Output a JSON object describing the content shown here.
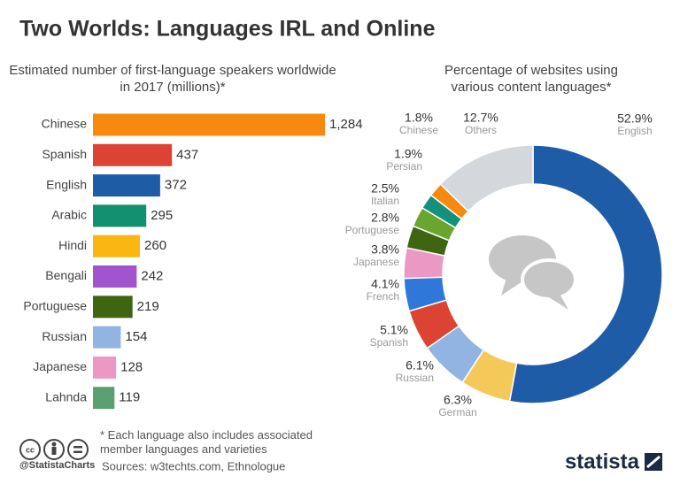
{
  "title": "Two Worlds: Languages IRL and Online",
  "chart_data": [
    {
      "type": "bar",
      "orientation": "horizontal",
      "title": "Estimated number of first-language speakers worldwide in 2017 (millions)*",
      "categories": [
        "Chinese",
        "Spanish",
        "English",
        "Arabic",
        "Hindi",
        "Bengali",
        "Portuguese",
        "Russian",
        "Japanese",
        "Lahnda"
      ],
      "values": [
        1284,
        437,
        372,
        295,
        260,
        242,
        219,
        154,
        128,
        119
      ],
      "value_labels": [
        "1,284",
        "437",
        "372",
        "295",
        "260",
        "242",
        "219",
        "154",
        "128",
        "119"
      ],
      "colors": [
        "#f7890f",
        "#dd4332",
        "#1f5ca8",
        "#13906f",
        "#fbb60f",
        "#a254cf",
        "#3e6612",
        "#92b4e3",
        "#ec98c4",
        "#5aa070"
      ]
    },
    {
      "type": "donut",
      "title": "Percentage of websites using various content languages*",
      "categories": [
        "English",
        "German",
        "Russian",
        "Spanish",
        "French",
        "Japanese",
        "Portuguese",
        "Italian",
        "Persian",
        "Chinese",
        "Others"
      ],
      "values": [
        52.9,
        6.3,
        6.1,
        5.1,
        4.1,
        3.8,
        2.8,
        2.5,
        1.9,
        1.8,
        12.7
      ],
      "value_labels": [
        "52.9%",
        "6.3%",
        "6.1%",
        "5.1%",
        "4.1%",
        "3.8%",
        "2.8%",
        "2.5%",
        "1.9%",
        "1.8%",
        "12.7%"
      ],
      "colors": [
        "#1f5ca8",
        "#f5c85a",
        "#92b4e3",
        "#dd4332",
        "#2f77d8",
        "#ec98c4",
        "#3e6612",
        "#6aa62f",
        "#14917a",
        "#f7890f",
        "#d4d7db"
      ]
    }
  ],
  "footnote": "* Each language also includes associated member languages and varieties",
  "handle": "@StatistaCharts",
  "source": "Sources: w3techts.com, Ethnologue",
  "brand": "statista"
}
